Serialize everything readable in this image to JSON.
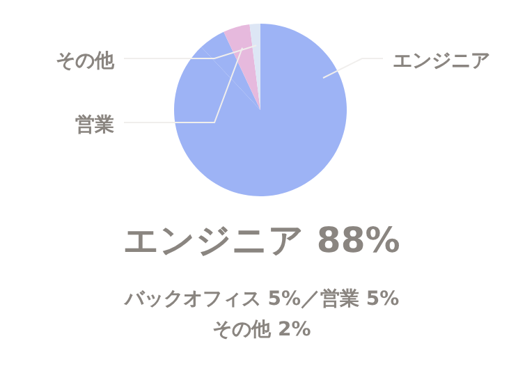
{
  "chart_data": {
    "type": "pie",
    "title": "エンジニア 88%",
    "categories": [
      "エンジニア",
      null,
      "営業",
      "その他"
    ],
    "values": [
      88,
      5,
      5,
      2
    ],
    "colors": [
      "#9db3f5",
      "#9db3f5",
      "#e6b9dd",
      "#dde6f5"
    ],
    "annotations": [
      "バックオフィス 5%／営業 5%",
      "その他 2%"
    ]
  }
}
